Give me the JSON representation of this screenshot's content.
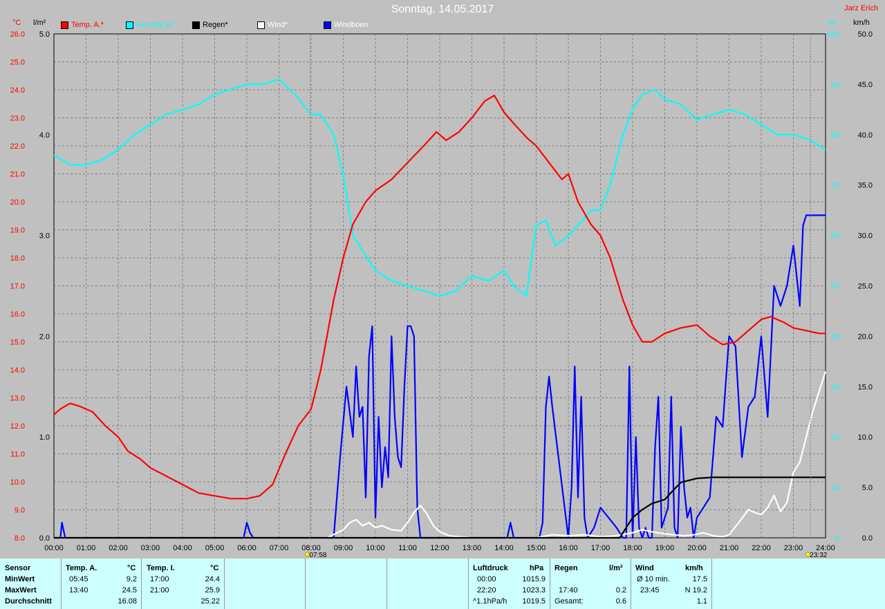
{
  "title": "Sonntag, 14.05.2017",
  "author": "Jarz Erich",
  "axis_units": {
    "left_temp": "°C",
    "left_rain": "l/m²",
    "right_hum": "%",
    "right_wind": "km/h"
  },
  "legend": [
    {
      "label": "Temp. A.*",
      "color": "#ff0000"
    },
    {
      "label": "Feuchte A.*",
      "color": "#00ffff"
    },
    {
      "label": "Regen*",
      "color": "#000000"
    },
    {
      "label": "Wind*",
      "color": "#ffffff"
    },
    {
      "label": "Windböen",
      "color": "#0000ff"
    }
  ],
  "markers": {
    "sunrise": "07:58",
    "sunset": "23:32"
  },
  "chart_data": {
    "type": "line",
    "x_ticks": [
      "00:00",
      "01:00",
      "02:00",
      "03:00",
      "04:00",
      "05:00",
      "06:00",
      "07:00",
      "08:00",
      "09:00",
      "10:00",
      "11:00",
      "12:00",
      "13:00",
      "14:00",
      "15:00",
      "16:00",
      "17:00",
      "18:00",
      "19:00",
      "20:00",
      "21:00",
      "22:00",
      "23:00",
      "24:00"
    ],
    "temp_ticks": [
      "8.0",
      "9.0",
      "10.0",
      "11.0",
      "12.0",
      "13.0",
      "14.0",
      "15.0",
      "16.0",
      "17.0",
      "18.0",
      "19.0",
      "20.0",
      "21.0",
      "22.0",
      "23.0",
      "24.0",
      "25.0",
      "26.0"
    ],
    "rain_ticks": [
      "0.0",
      "1.0",
      "2.0",
      "3.0",
      "4.0",
      "5.0"
    ],
    "hum_ticks": [
      "0",
      "10",
      "20",
      "30",
      "40",
      "50",
      "60",
      "70",
      "80",
      "90",
      "100"
    ],
    "wind_ticks": [
      "0.0",
      "5.0",
      "10.0",
      "15.0",
      "20.0",
      "25.0",
      "30.0",
      "35.0",
      "40.0",
      "45.0",
      "50.0"
    ],
    "temp_range": [
      8,
      26
    ],
    "rain_range": [
      0,
      5
    ],
    "hum_range": [
      0,
      100
    ],
    "wind_range": [
      0,
      50
    ],
    "grid": true,
    "series": [
      {
        "name": "Temp. A.*",
        "axis": "temp",
        "color": "#ff0000",
        "x": [
          0,
          0.2,
          0.5,
          0.8,
          1.2,
          1.6,
          2.0,
          2.3,
          2.7,
          3.0,
          3.5,
          4.0,
          4.5,
          5.0,
          5.5,
          6.0,
          6.4,
          6.8,
          7.2,
          7.6,
          8.0,
          8.3,
          8.7,
          9.0,
          9.3,
          9.7,
          10.0,
          10.5,
          11.0,
          11.5,
          11.9,
          12.2,
          12.6,
          13.0,
          13.4,
          13.7,
          14.0,
          14.3,
          14.7,
          15.0,
          15.4,
          15.8,
          16.0,
          16.3,
          16.7,
          17.0,
          17.3,
          17.7,
          18.0,
          18.3,
          18.6,
          19.0,
          19.5,
          20.0,
          20.4,
          20.8,
          21.2,
          21.6,
          22.0,
          22.3,
          22.7,
          23.0,
          23.4,
          23.8,
          24.0
        ],
        "values": [
          12.4,
          12.6,
          12.8,
          12.7,
          12.5,
          12.0,
          11.6,
          11.1,
          10.8,
          10.5,
          10.2,
          9.9,
          9.6,
          9.5,
          9.4,
          9.4,
          9.5,
          9.9,
          11.0,
          12.0,
          12.6,
          14.0,
          16.5,
          18.0,
          19.2,
          20.0,
          20.4,
          20.8,
          21.4,
          22.0,
          22.5,
          22.2,
          22.5,
          23.0,
          23.6,
          23.8,
          23.2,
          22.8,
          22.3,
          22.0,
          21.4,
          20.8,
          21.0,
          20.0,
          19.2,
          18.8,
          18.0,
          16.5,
          15.6,
          15.0,
          15.0,
          15.3,
          15.5,
          15.6,
          15.2,
          14.9,
          15.0,
          15.4,
          15.8,
          15.9,
          15.7,
          15.5,
          15.4,
          15.3,
          15.3
        ]
      },
      {
        "name": "Feuchte A.*",
        "axis": "hum",
        "color": "#00ffff",
        "x": [
          0,
          0.5,
          1.0,
          1.5,
          2.0,
          2.5,
          3.0,
          3.5,
          4.0,
          4.5,
          5.0,
          5.5,
          6.0,
          6.5,
          7.0,
          7.5,
          8.0,
          8.3,
          8.7,
          9.0,
          9.3,
          9.7,
          10.0,
          10.5,
          11.0,
          11.5,
          12.0,
          12.5,
          13.0,
          13.5,
          14.0,
          14.3,
          14.7,
          15.0,
          15.3,
          15.6,
          16.0,
          16.3,
          16.7,
          17.0,
          17.3,
          17.7,
          18.0,
          18.3,
          18.7,
          19.0,
          19.5,
          20.0,
          20.5,
          21.0,
          21.5,
          22.0,
          22.5,
          23.0,
          23.5,
          24.0
        ],
        "values": [
          76,
          74,
          74,
          75,
          77,
          80,
          82,
          84,
          85,
          86,
          88,
          89,
          90,
          90,
          91,
          88,
          84,
          84,
          80,
          72,
          60,
          56,
          53,
          51,
          50,
          49,
          48,
          49,
          52,
          51,
          53,
          50,
          48,
          62,
          63,
          58,
          60,
          62,
          65,
          65,
          70,
          80,
          85,
          88,
          89,
          87,
          86,
          83,
          84,
          85,
          84,
          82,
          80,
          80,
          79,
          77
        ]
      },
      {
        "name": "Regen*",
        "axis": "rain",
        "color": "#000000",
        "x": [
          0,
          17.6,
          17.8,
          18.0,
          18.3,
          18.6,
          19.0,
          19.2,
          19.5,
          20.0,
          20.5,
          21.0,
          22.0,
          23.0,
          24.0
        ],
        "values": [
          0,
          0,
          0.1,
          0.2,
          0.28,
          0.34,
          0.38,
          0.45,
          0.55,
          0.59,
          0.6,
          0.6,
          0.6,
          0.6,
          0.6
        ]
      },
      {
        "name": "Wind*",
        "axis": "wind",
        "color": "#ffffff",
        "x": [
          0,
          8.5,
          9.0,
          9.2,
          9.4,
          9.6,
          9.8,
          10.0,
          10.2,
          10.5,
          10.8,
          11.0,
          11.2,
          11.4,
          11.6,
          11.8,
          12.0,
          12.3,
          12.6,
          13.0,
          14.0,
          15.0,
          15.5,
          16.0,
          16.5,
          17.0,
          17.5,
          18.0,
          18.3,
          18.6,
          19.0,
          19.3,
          19.6,
          19.9,
          20.2,
          20.5,
          20.8,
          21.0,
          21.3,
          21.6,
          21.8,
          22.0,
          22.2,
          22.4,
          22.6,
          22.8,
          23.0,
          23.2,
          23.4,
          23.6,
          23.8,
          24.0
        ],
        "values": [
          0,
          0,
          0.8,
          1.5,
          1.8,
          1.2,
          1.5,
          1.0,
          1.2,
          0.8,
          0.7,
          1.5,
          2.5,
          3.2,
          2.4,
          1.2,
          0.6,
          0.2,
          0.1,
          0,
          0,
          0,
          0.3,
          0.2,
          0.3,
          0.1,
          0.2,
          0.5,
          0.8,
          0.6,
          0.4,
          0.3,
          0.2,
          0.3,
          0.5,
          0.2,
          0.1,
          0.3,
          1.5,
          2.8,
          2.5,
          2.3,
          3.0,
          4.2,
          2.6,
          3.5,
          6.5,
          7.5,
          10.0,
          12.5,
          14.5,
          16.5
        ]
      },
      {
        "name": "Windböen",
        "axis": "wind",
        "color": "#0000ff",
        "x": [
          0,
          0.2,
          0.25,
          0.35,
          5.9,
          6.0,
          6.1,
          6.2,
          8.7,
          8.9,
          9.1,
          9.3,
          9.4,
          9.5,
          9.6,
          9.7,
          9.8,
          9.9,
          10.0,
          10.1,
          10.2,
          10.3,
          10.4,
          10.5,
          10.6,
          10.7,
          10.8,
          10.9,
          11.0,
          11.1,
          11.2,
          11.3,
          11.4,
          11.5,
          11.6,
          12.0,
          13.0,
          14.1,
          14.2,
          14.3,
          15.1,
          15.2,
          15.3,
          15.4,
          15.5,
          16.0,
          16.1,
          16.2,
          16.3,
          16.4,
          16.5,
          16.6,
          16.8,
          17.0,
          17.5,
          17.7,
          17.8,
          17.9,
          18.0,
          18.1,
          18.2,
          18.3,
          18.4,
          18.5,
          18.6,
          18.7,
          18.8,
          18.9,
          19.0,
          19.1,
          19.2,
          19.3,
          19.4,
          19.5,
          19.6,
          19.7,
          19.8,
          19.9,
          20.0,
          20.2,
          20.4,
          20.6,
          20.8,
          21.0,
          21.2,
          21.4,
          21.6,
          21.8,
          22.0,
          22.2,
          22.4,
          22.6,
          22.8,
          23.0,
          23.1,
          23.2,
          23.3,
          23.4,
          23.5,
          23.6,
          23.7,
          23.8,
          24.0
        ],
        "values": [
          0,
          0,
          1.5,
          0,
          0,
          1.5,
          0.5,
          0,
          0,
          8,
          15,
          10,
          17,
          12,
          13,
          4,
          18,
          21,
          2,
          12,
          5,
          9,
          6,
          20,
          12,
          8,
          7,
          15,
          21,
          21,
          20,
          3,
          0,
          0,
          0,
          0,
          0,
          0,
          1.5,
          0,
          0,
          1.5,
          13,
          16,
          13,
          0,
          5,
          17,
          4,
          14,
          2,
          0,
          1,
          3,
          1,
          0,
          0,
          17,
          0,
          10,
          1,
          0,
          1,
          0,
          0,
          9,
          14,
          1,
          2,
          3,
          14,
          1,
          0,
          11,
          5,
          2,
          3,
          0,
          2,
          3,
          4,
          12,
          11,
          20,
          19,
          8,
          13,
          14,
          20,
          12,
          25,
          23,
          25,
          29,
          26,
          23,
          31,
          32,
          32,
          32,
          32,
          32,
          32
        ]
      }
    ]
  },
  "footer": {
    "sensor": {
      "header": "Sensor",
      "rows": [
        "MinWert",
        "MaxWert",
        "Durchschnitt"
      ]
    },
    "temp_a": {
      "header": "Temp. A.",
      "unit": "°C",
      "rows": [
        [
          "05:45",
          "9.2"
        ],
        [
          "13:40",
          "24.5"
        ],
        [
          "",
          "16.08"
        ]
      ]
    },
    "temp_i": {
      "header": "Temp. I.",
      "unit": "°C",
      "rows": [
        [
          "17:00",
          "24.4"
        ],
        [
          "21:00",
          "25.9"
        ],
        [
          "",
          "25.22"
        ]
      ]
    },
    "pressure": {
      "header": "Luftdruck",
      "unit": "hPa",
      "rows": [
        [
          "00:00",
          "1015.9"
        ],
        [
          "22:20",
          "1023.3"
        ],
        [
          "^1.1hPa/h",
          "1019.5"
        ]
      ]
    },
    "rain": {
      "header": "Regen",
      "unit": "l/m²",
      "rows": [
        [
          "",
          ""
        ],
        [
          "17:40",
          "0.2"
        ],
        [
          "Gesamt:",
          "0.6"
        ]
      ]
    },
    "wind": {
      "header": "Wind",
      "unit": "km/h",
      "rows": [
        [
          "Ø 10 min.",
          "17.5"
        ],
        [
          "23:45",
          "N 19.2"
        ],
        [
          "",
          "1.1"
        ]
      ]
    }
  }
}
